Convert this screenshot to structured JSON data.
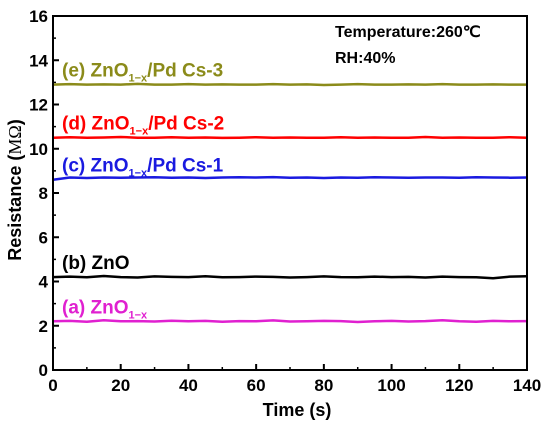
{
  "chart_data": {
    "type": "line",
    "xlabel": "Time (s)",
    "ylabel_text": "Resistance (",
    "ylabel_unit": "MΩ",
    "ylabel_close": ")",
    "xlim": [
      0,
      140
    ],
    "ylim": [
      0,
      16
    ],
    "x_ticks": [
      "0",
      "20",
      "40",
      "60",
      "80",
      "100",
      "120",
      "140"
    ],
    "y_ticks": [
      "0",
      "2",
      "4",
      "6",
      "8",
      "10",
      "12",
      "14",
      "16"
    ],
    "grid": false,
    "annotations": {
      "temperature": "Temperature:260℃",
      "humidity": "RH:40%"
    },
    "x": [
      0,
      5,
      10,
      15,
      20,
      25,
      30,
      35,
      40,
      45,
      50,
      55,
      60,
      65,
      70,
      75,
      80,
      85,
      90,
      95,
      100,
      105,
      110,
      115,
      120,
      125,
      130,
      135,
      140
    ],
    "series": [
      {
        "label_prefix": "(a) ZnO",
        "label_sub": "1−x",
        "label_suffix": "",
        "color": "#e020d0",
        "values": [
          2.2,
          2.22,
          2.18,
          2.25,
          2.2,
          2.21,
          2.19,
          2.23,
          2.2,
          2.22,
          2.18,
          2.21,
          2.2,
          2.24,
          2.19,
          2.2,
          2.22,
          2.21,
          2.17,
          2.2,
          2.22,
          2.19,
          2.21,
          2.25,
          2.2,
          2.18,
          2.22,
          2.2,
          2.21
        ]
      },
      {
        "label_prefix": "(b) ZnO",
        "label_sub": "",
        "label_suffix": "",
        "color": "#000000",
        "values": [
          4.2,
          4.22,
          4.19,
          4.25,
          4.2,
          4.18,
          4.23,
          4.21,
          4.2,
          4.24,
          4.19,
          4.2,
          4.22,
          4.21,
          4.18,
          4.2,
          4.23,
          4.2,
          4.19,
          4.22,
          4.2,
          4.21,
          4.18,
          4.22,
          4.2,
          4.19,
          4.15,
          4.22,
          4.24
        ]
      },
      {
        "label_prefix": "(c) ZnO",
        "label_sub": "1−x",
        "label_suffix": "/Pd Cs-1",
        "color": "#1a1ae0",
        "values": [
          8.6,
          8.7,
          8.68,
          8.7,
          8.69,
          8.7,
          8.71,
          8.69,
          8.7,
          8.68,
          8.7,
          8.71,
          8.7,
          8.72,
          8.69,
          8.7,
          8.68,
          8.7,
          8.69,
          8.71,
          8.7,
          8.69,
          8.7,
          8.7,
          8.69,
          8.71,
          8.7,
          8.69,
          8.7
        ]
      },
      {
        "label_prefix": "(d) ZnO",
        "label_sub": "1−x",
        "label_suffix": "/Pd Cs-2",
        "color": "#ff0000",
        "values": [
          10.5,
          10.52,
          10.5,
          10.51,
          10.53,
          10.5,
          10.5,
          10.52,
          10.5,
          10.51,
          10.49,
          10.5,
          10.52,
          10.5,
          10.51,
          10.5,
          10.5,
          10.52,
          10.5,
          10.51,
          10.5,
          10.5,
          10.53,
          10.5,
          10.51,
          10.5,
          10.5,
          10.52,
          10.5
        ]
      },
      {
        "label_prefix": "(e) ZnO",
        "label_sub": "1−x",
        "label_suffix": "/Pd Cs-3",
        "color": "#8b8b1a",
        "values": [
          12.9,
          12.92,
          12.9,
          12.91,
          12.9,
          12.93,
          12.9,
          12.9,
          12.92,
          12.9,
          12.91,
          12.9,
          12.9,
          12.92,
          12.9,
          12.91,
          12.88,
          12.9,
          12.92,
          12.9,
          12.9,
          12.91,
          12.9,
          12.92,
          12.9,
          12.9,
          12.91,
          12.9,
          12.9
        ]
      }
    ]
  }
}
